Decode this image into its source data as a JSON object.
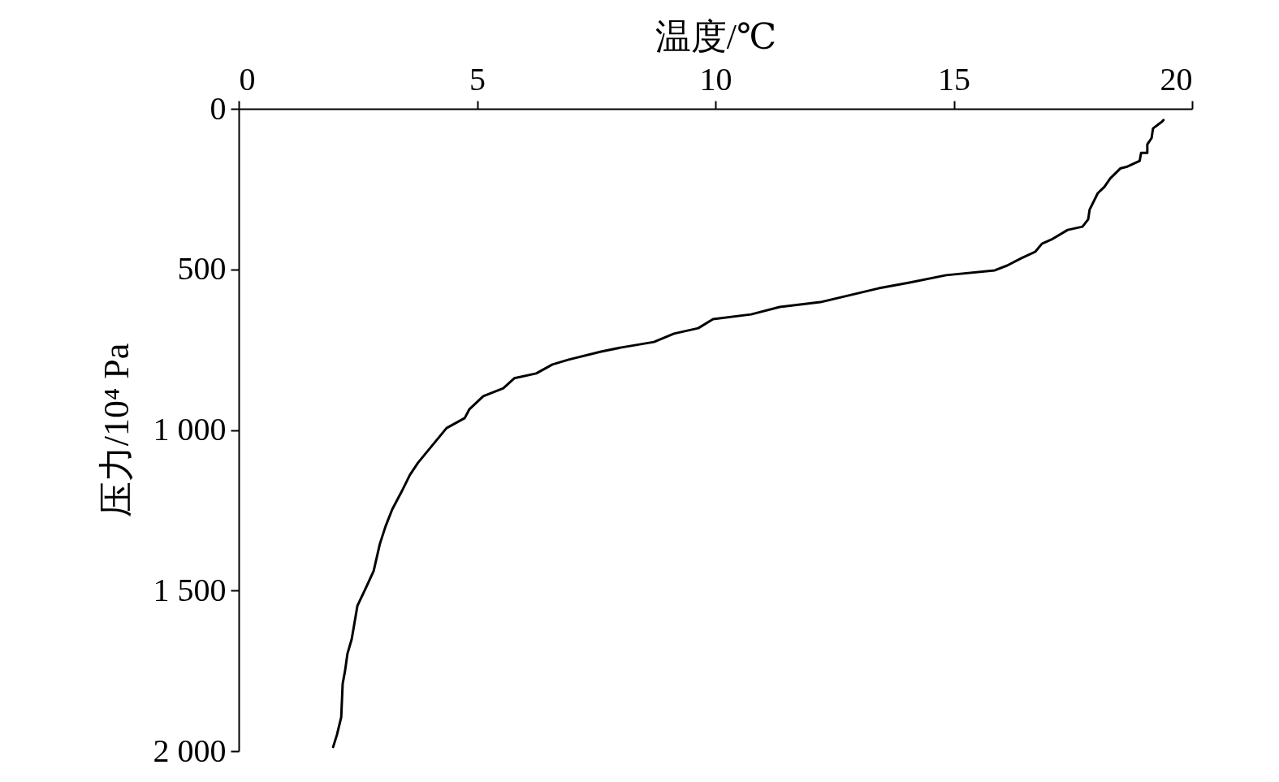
{
  "chart_data": {
    "type": "line",
    "xlabel": "温度/℃",
    "ylabel": "压力/10⁴ Pa",
    "x": [
      19.4,
      19.37,
      19.18,
      19.15,
      19.06,
      19.06,
      18.93,
      18.9,
      18.64,
      18.5,
      18.28,
      18.16,
      18.02,
      17.85,
      17.82,
      17.7,
      17.39,
      17.05,
      16.85,
      16.71,
      16.42,
      16.12,
      15.86,
      14.84,
      14.07,
      13.42,
      12.2,
      11.35,
      10.75,
      9.95,
      9.64,
      9.13,
      8.71,
      8.03,
      7.6,
      6.92,
      6.58,
      6.24,
      5.78,
      5.55,
      5.13,
      4.84,
      4.74,
      4.36,
      3.76,
      3.59,
      3.42,
      3.22,
      3.08,
      2.96,
      2.83,
      2.66,
      2.49,
      2.37,
      2.28,
      2.23,
      2.18,
      2.15,
      2.06,
      1.98
    ],
    "series": [
      {
        "color": "#000000",
        "values": [
          35,
          40,
          61,
          91,
          111,
          137,
          137,
          162,
          180,
          185,
          217,
          243,
          263,
          314,
          344,
          367,
          377,
          407,
          420,
          445,
          465,
          488,
          503,
          518,
          541,
          559,
          602,
          617,
          640,
          655,
          683,
          700,
          726,
          743,
          756,
          781,
          796,
          824,
          839,
          870,
          895,
          935,
          963,
          994,
          1102,
          1140,
          1191,
          1247,
          1300,
          1355,
          1439,
          1494,
          1547,
          1651,
          1697,
          1750,
          1790,
          1894,
          1949,
          1987
        ]
      }
    ],
    "xlim": [
      0,
      20
    ],
    "xticks": [
      0,
      5,
      10,
      15,
      20
    ],
    "ylim": [
      2000,
      0
    ],
    "yticks": [
      0,
      500,
      {
        "value": 1000,
        "label": "1 000"
      },
      {
        "value": 1500,
        "label": "1 500"
      },
      {
        "value": 2000,
        "label": "2 000"
      }
    ]
  }
}
